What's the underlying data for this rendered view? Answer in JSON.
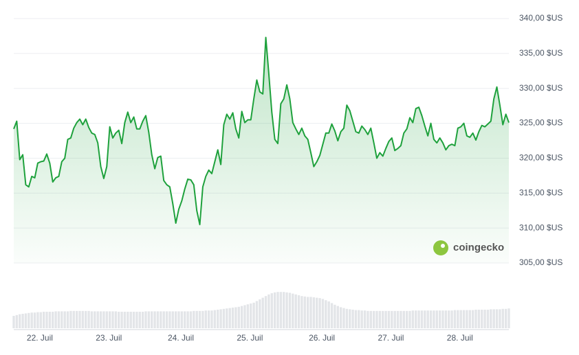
{
  "chart_data": {
    "type": "line",
    "categories": [
      null,
      null,
      null,
      null,
      null,
      null,
      null,
      null,
      "22. Juil",
      null,
      null,
      null,
      null,
      null,
      null,
      null,
      null,
      null,
      null,
      null,
      null,
      null,
      null,
      null,
      null,
      null,
      null,
      null,
      null,
      null,
      null,
      "23. Juil",
      null,
      null,
      null,
      null,
      null,
      null,
      null,
      null,
      null,
      null,
      null,
      null,
      null,
      null,
      null,
      null,
      null,
      null,
      null,
      null,
      null,
      null,
      null,
      "24. Juil",
      null,
      null,
      null,
      null,
      null,
      null,
      null,
      null,
      null,
      null,
      null,
      null,
      null,
      null,
      null,
      null,
      null,
      null,
      null,
      null,
      null,
      null,
      "25. Juil",
      null,
      null,
      null,
      null,
      null,
      null,
      null,
      null,
      null,
      null,
      null,
      null,
      null,
      null,
      null,
      null,
      null,
      null,
      null,
      null,
      null,
      null,
      null,
      "26. Juil",
      null,
      null,
      null,
      null,
      null,
      null,
      null,
      null,
      null,
      null,
      null,
      null,
      null,
      null,
      null,
      null,
      null,
      null,
      null,
      null,
      null,
      null,
      "27. Juil",
      null,
      null,
      null,
      null,
      null,
      null,
      null,
      null,
      null,
      null,
      null,
      null,
      null,
      null,
      null,
      null,
      null,
      null,
      null,
      null,
      null,
      null,
      "28. Juil",
      null,
      null,
      null,
      null,
      null,
      null,
      null,
      null,
      null,
      null,
      null,
      null,
      null,
      null,
      null,
      null,
      null
    ],
    "series": [
      {
        "color": "#1ea13c",
        "values": [
          324.2,
          325.3,
          319.8,
          320.5,
          316.2,
          315.9,
          317.4,
          317.2,
          319.3,
          319.5,
          319.6,
          320.6,
          319.3,
          316.6,
          317.2,
          317.4,
          319.5,
          320.0,
          322.7,
          322.9,
          324.3,
          325.1,
          325.6,
          324.8,
          325.6,
          324.4,
          323.6,
          323.4,
          322.2,
          318.8,
          317.1,
          318.8,
          324.5,
          322.9,
          323.6,
          324.0,
          322.1,
          325.1,
          326.6,
          325.1,
          325.9,
          324.2,
          324.2,
          325.3,
          326.1,
          323.7,
          320.5,
          318.5,
          320.1,
          320.3,
          316.8,
          316.2,
          315.9,
          313.5,
          310.7,
          312.7,
          313.9,
          315.6,
          317.0,
          316.9,
          316.2,
          312.5,
          310.5,
          315.9,
          317.4,
          318.3,
          317.8,
          319.5,
          321.2,
          319.1,
          324.8,
          326.3,
          325.6,
          326.5,
          324.2,
          322.9,
          326.7,
          325.1,
          325.5,
          325.5,
          328.5,
          331.2,
          329.5,
          329.2,
          337.3,
          332.1,
          326.6,
          322.7,
          322.1,
          327.8,
          328.5,
          330.5,
          328.5,
          325.1,
          324.2,
          323.4,
          324.3,
          323.2,
          322.7,
          320.8,
          318.8,
          319.5,
          320.4,
          322.0,
          323.6,
          323.6,
          324.9,
          323.9,
          322.5,
          323.8,
          324.3,
          327.6,
          326.8,
          325.3,
          323.8,
          323.6,
          324.6,
          324.1,
          323.4,
          324.3,
          322.2,
          320.0,
          320.8,
          320.3,
          321.4,
          322.4,
          322.9,
          321.1,
          321.4,
          321.8,
          323.6,
          324.2,
          325.8,
          325.1,
          327.1,
          327.3,
          326.1,
          324.6,
          323.2,
          325.0,
          322.7,
          322.2,
          322.9,
          322.2,
          321.2,
          321.8,
          322.0,
          321.8,
          324.3,
          324.5,
          325.0,
          323.2,
          323.0,
          323.6,
          322.6,
          323.8,
          324.7,
          324.5,
          324.9,
          325.3,
          328.5,
          330.2,
          327.6,
          324.8,
          326.3,
          325.1
        ]
      },
      {
        "type": "bar",
        "axis": "y2",
        "color": "#e3e5e8",
        "values": [
          30,
          32,
          34,
          35,
          36,
          37,
          38,
          38,
          39,
          39,
          40,
          40,
          40,
          40,
          41,
          41,
          41,
          41,
          41,
          42,
          42,
          42,
          42,
          42,
          42,
          42,
          41,
          41,
          41,
          41,
          41,
          41,
          41,
          41,
          41,
          40,
          40,
          40,
          40,
          40,
          40,
          40,
          40,
          40,
          41,
          41,
          41,
          41,
          41,
          41,
          41,
          41,
          41,
          41,
          41,
          41,
          41,
          41,
          41,
          41,
          42,
          42,
          42,
          42,
          43,
          43,
          43,
          44,
          45,
          46,
          47,
          48,
          49,
          50,
          51,
          52,
          54,
          56,
          58,
          60,
          62,
          66,
          70,
          74,
          78,
          82,
          85,
          87,
          88,
          88,
          88,
          87,
          86,
          84,
          82,
          80,
          78,
          77,
          76,
          76,
          75,
          74,
          73,
          71,
          68,
          65,
          61,
          57,
          54,
          51,
          49,
          47,
          46,
          45,
          44,
          44,
          43,
          43,
          42,
          42,
          42,
          42,
          42,
          42,
          42,
          42,
          42,
          42,
          42,
          42,
          42,
          42,
          42,
          43,
          43,
          43,
          43,
          43,
          43,
          43,
          43,
          43,
          43,
          43,
          43,
          43,
          43,
          44,
          44,
          44,
          44,
          44,
          44,
          44,
          45,
          45,
          45,
          45,
          45,
          46,
          46,
          46,
          46,
          47,
          47,
          48
        ]
      }
    ],
    "ylim": [
      305,
      340
    ],
    "yticks": [
      {
        "value": 305,
        "label": "305,00 $US"
      },
      {
        "value": 310,
        "label": "310,00 $US"
      },
      {
        "value": 315,
        "label": "315,00 $US"
      },
      {
        "value": 320,
        "label": "320,00 $US"
      },
      {
        "value": 325,
        "label": "325,00 $US"
      },
      {
        "value": 330,
        "label": "330,00 $US"
      },
      {
        "value": 335,
        "label": "335,00 $US"
      },
      {
        "value": 340,
        "label": "340,00 $US"
      }
    ],
    "y2lim": [
      0,
      100
    ],
    "grid": true,
    "watermark": "coingecko"
  }
}
